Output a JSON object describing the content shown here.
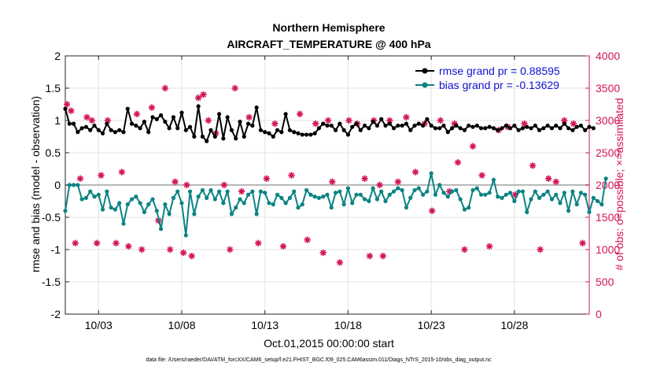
{
  "chart_data": {
    "type": "line",
    "title": "Northern Hemisphere",
    "subtitle": "AIRCRAFT_TEMPERATURE @ 400 hPa",
    "xlabel": "Oct.01,2015 00:00:00 start",
    "ylabel": "rmse and bias (model - observation)",
    "y2label": "# of obs: o=possible; ×=assimilated",
    "footnote": "data file: /Users/raeder/DAI/ATM_forcXX/CAM6_setup/f.e21.FHIST_BGC.f09_025.CAM6assim.011/Diags_NTrS_2015-10/obs_diag_output.nc",
    "xlim": [
      1,
      32.5
    ],
    "ylim": [
      -2,
      2
    ],
    "y2lim": [
      0,
      4000
    ],
    "xticks": [
      3,
      8,
      13,
      18,
      23,
      28
    ],
    "xtick_labels": [
      "10/03",
      "10/08",
      "10/13",
      "10/18",
      "10/23",
      "10/28"
    ],
    "yticks": [
      -2,
      -1.5,
      -1,
      -0.5,
      0,
      0.5,
      1,
      1.5,
      2
    ],
    "ytick_labels": [
      "-2",
      "-1.5",
      "-1",
      "-0.5",
      "0",
      "0.5",
      "1",
      "1.5",
      "2"
    ],
    "y2ticks": [
      0,
      500,
      1000,
      1500,
      2000,
      2500,
      3000,
      3500,
      4000
    ],
    "y2tick_labels": [
      "0",
      "500",
      "1000",
      "1500",
      "2000",
      "2500",
      "3000",
      "3500",
      "4000"
    ],
    "grid": true,
    "legend_position": "top-right",
    "colors": {
      "rmse": "#000000",
      "bias": "#0a8383",
      "obs": "#d4145a",
      "zero_line": "#b8b8b8"
    },
    "series": [
      {
        "name": "rmse grand pr = 0.88595",
        "x_start": 1.0,
        "x_step": 0.25,
        "values": [
          1.18,
          0.95,
          0.95,
          0.82,
          0.88,
          0.9,
          0.85,
          0.92,
          0.85,
          0.8,
          0.95,
          0.85,
          0.82,
          0.85,
          0.82,
          1.18,
          0.95,
          0.92,
          0.88,
          0.98,
          0.82,
          1.05,
          1.02,
          1.08,
          0.98,
          0.88,
          1.05,
          0.88,
          1.12,
          0.85,
          0.9,
          0.75,
          1.22,
          0.75,
          0.68,
          0.85,
          0.75,
          1.1,
          0.72,
          1.05,
          0.85,
          0.72,
          0.98,
          0.75,
          0.95,
          0.92,
          1.2,
          0.85,
          0.82,
          0.8,
          0.75,
          0.85,
          0.82,
          1.1,
          0.85,
          0.82,
          0.8,
          0.78,
          0.78,
          0.78,
          0.8,
          0.88,
          0.95,
          0.92,
          0.92,
          0.85,
          0.95,
          0.85,
          0.78,
          0.9,
          0.95,
          0.85,
          0.92,
          0.88,
          0.98,
          0.92,
          1.02,
          0.92,
          0.95,
          0.88,
          0.92,
          0.92,
          0.95,
          0.85,
          0.92,
          0.95,
          0.92,
          1.02,
          0.92,
          0.88,
          0.88,
          0.92,
          0.82,
          0.88,
          0.92,
          0.88,
          0.85,
          0.92,
          0.9,
          0.92,
          0.88,
          0.88,
          0.9,
          0.88,
          0.85,
          0.88,
          0.92,
          0.88,
          0.92,
          0.85,
          0.88,
          0.9,
          0.88,
          0.92,
          0.85,
          0.88,
          0.92,
          0.88,
          0.92,
          0.88,
          0.95,
          0.88,
          0.85,
          0.9,
          0.92,
          0.85,
          0.9,
          0.88
        ],
        "marker": "filled-circle"
      },
      {
        "name": "bias grand pr = -0.13629",
        "x_start": 1.0,
        "x_step": 0.25,
        "values": [
          -0.4,
          0.0,
          0.0,
          0.0,
          -0.22,
          -0.2,
          -0.1,
          -0.18,
          -0.15,
          -0.38,
          -0.1,
          -0.35,
          -0.38,
          -0.28,
          -0.6,
          -0.3,
          -0.22,
          -0.18,
          -0.28,
          -0.42,
          -0.3,
          -0.22,
          -0.4,
          -0.68,
          -0.3,
          -0.45,
          -0.2,
          -0.1,
          -0.28,
          -0.78,
          -0.1,
          -0.45,
          -0.18,
          -0.08,
          -0.2,
          -0.08,
          -0.22,
          -0.1,
          -0.28,
          -0.1,
          -0.45,
          -0.35,
          -0.22,
          -0.28,
          -0.15,
          -0.1,
          -0.45,
          -0.1,
          -0.12,
          -0.28,
          -0.3,
          -0.15,
          -0.2,
          -0.28,
          -0.2,
          -0.1,
          -0.35,
          -0.3,
          -0.08,
          -0.15,
          -0.18,
          -0.2,
          -0.18,
          -0.15,
          -0.35,
          -0.12,
          -0.1,
          -0.3,
          -0.05,
          -0.28,
          -0.15,
          -0.15,
          -0.22,
          -0.25,
          -0.05,
          -0.22,
          -0.1,
          -0.25,
          -0.15,
          -0.1,
          -0.05,
          -0.08,
          -0.35,
          -0.2,
          -0.08,
          -0.05,
          -0.15,
          -0.1,
          0.18,
          -0.15,
          0.0,
          -0.12,
          -0.18,
          -0.1,
          -0.08,
          -0.22,
          -0.38,
          -0.35,
          -0.08,
          -0.05,
          -0.15,
          -0.15,
          -0.12,
          0.08,
          -0.18,
          -0.2,
          -0.15,
          -0.12,
          -0.25,
          -0.1,
          -0.1,
          -0.42,
          -0.22,
          -0.1,
          -0.2,
          -0.15,
          -0.1,
          -0.22,
          -0.15,
          -0.28,
          -0.12,
          -0.4,
          -0.1,
          -0.3,
          -0.12,
          -0.15,
          -0.42,
          -0.2,
          -0.25,
          -0.3,
          0.1
        ],
        "marker": "filled-circle"
      }
    ],
    "obs_counts": {
      "x": [
        1.1,
        1.35,
        1.6,
        1.9,
        2.3,
        2.6,
        2.9,
        3.15,
        3.55,
        4.05,
        4.4,
        4.8,
        5.3,
        5.6,
        6.2,
        6.6,
        7.0,
        7.3,
        7.6,
        8.1,
        8.3,
        8.6,
        9.0,
        9.3,
        9.6,
        10.05,
        10.55,
        10.9,
        11.2,
        11.6,
        12.05,
        12.6,
        13.1,
        13.6,
        14.1,
        14.6,
        15.1,
        15.55,
        16.05,
        16.5,
        16.8,
        17.05,
        17.5,
        18.05,
        18.55,
        19.0,
        19.3,
        19.55,
        19.9,
        20.1,
        20.5,
        21.0,
        21.5,
        22.05,
        22.6,
        23.05,
        23.55,
        24.1,
        24.4,
        24.6,
        25.0,
        25.5,
        26.05,
        26.5,
        27.05,
        27.6,
        28.05,
        28.6,
        29.1,
        29.55,
        30.05,
        30.5,
        31.0,
        31.55,
        32.1
      ],
      "values": [
        3250,
        3150,
        1100,
        2100,
        3050,
        3000,
        1100,
        2150,
        3000,
        1100,
        2200,
        1050,
        3100,
        1000,
        3200,
        1450,
        3500,
        1000,
        2050,
        950,
        2000,
        900,
        3350,
        3400,
        3000,
        2800,
        2000,
        1000,
        3500,
        1900,
        3050,
        1100,
        2100,
        2950,
        1050,
        2150,
        3100,
        1150,
        2950,
        950,
        3000,
        2050,
        800,
        3000,
        2950,
        2100,
        900,
        3000,
        2000,
        900,
        3000,
        2050,
        3050,
        2200,
        2950,
        1600,
        3000,
        1900,
        2950,
        2350,
        1000,
        2600,
        2150,
        1050,
        2850,
        2900,
        1850,
        2950,
        2300,
        1000,
        2100,
        2050,
        3000,
        2950,
        1100
      ],
      "marker": "asterisk"
    }
  }
}
